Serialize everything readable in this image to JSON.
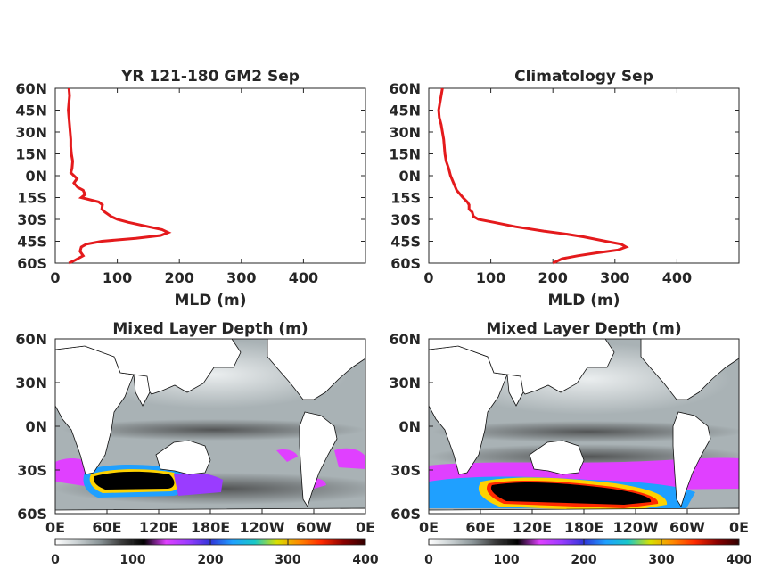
{
  "chart_data": [
    {
      "type": "line",
      "title": "YR 121-180 GM2 Sep",
      "xlabel": "MLD (m)",
      "ylabel": "",
      "xlim": [
        0,
        500
      ],
      "ylim": [
        -60,
        60
      ],
      "xticks": [
        "0",
        "100",
        "200",
        "300",
        "400"
      ],
      "yticks": [
        "60N",
        "45N",
        "30N",
        "15N",
        "0N",
        "15S",
        "30S",
        "45S",
        "60S"
      ],
      "line_color": "#e41a1c",
      "series": [
        {
          "lat": [
            60,
            55,
            50,
            45,
            40,
            35,
            30,
            25,
            20,
            15,
            10,
            5,
            2,
            0,
            -2,
            -5,
            -8,
            -10,
            -13,
            -15,
            -18,
            -20,
            -23,
            -25,
            -28,
            -30,
            -32,
            -35,
            -37,
            -39,
            -41,
            -43,
            -45,
            -47,
            -49,
            -52,
            -55,
            -58,
            -60
          ],
          "mld": [
            22,
            23,
            22,
            21,
            22,
            23,
            24,
            25,
            25,
            26,
            28,
            27,
            25,
            30,
            35,
            30,
            36,
            45,
            48,
            42,
            70,
            76,
            75,
            80,
            90,
            100,
            118,
            150,
            172,
            182,
            170,
            130,
            75,
            50,
            42,
            40,
            45,
            32,
            22
          ]
        }
      ]
    },
    {
      "type": "line",
      "title": "Climatology Sep",
      "xlabel": "MLD (m)",
      "ylabel": "",
      "xlim": [
        0,
        500
      ],
      "ylim": [
        -60,
        60
      ],
      "xticks": [
        "0",
        "100",
        "200",
        "300",
        "400"
      ],
      "yticks": [
        "60N",
        "45N",
        "30N",
        "15N",
        "0N",
        "15S",
        "30S",
        "45S",
        "60S"
      ],
      "line_color": "#e41a1c",
      "series": [
        {
          "lat": [
            60,
            55,
            50,
            45,
            40,
            35,
            30,
            25,
            20,
            15,
            10,
            5,
            0,
            -5,
            -10,
            -15,
            -18,
            -20,
            -23,
            -25,
            -28,
            -30,
            -32,
            -35,
            -38,
            -40,
            -42,
            -45,
            -47,
            -49,
            -51,
            -53,
            -55,
            -57,
            -60
          ],
          "mld": [
            22,
            20,
            18,
            16,
            17,
            20,
            22,
            24,
            25,
            26,
            28,
            32,
            35,
            40,
            45,
            55,
            62,
            65,
            65,
            70,
            72,
            80,
            105,
            140,
            185,
            220,
            250,
            285,
            310,
            318,
            305,
            270,
            240,
            215,
            200
          ]
        }
      ]
    },
    {
      "type": "heatmap",
      "title": "Mixed Layer Depth (m)",
      "xticks": [
        "0E",
        "60E",
        "120E",
        "180E",
        "120W",
        "60W",
        "0E"
      ],
      "yticks": [
        "60N",
        "30N",
        "0N",
        "30S",
        "60S"
      ],
      "colorbar_ticks": [
        "0",
        "100",
        "200",
        "300",
        "400"
      ],
      "colorbar_range": [
        0,
        400
      ]
    },
    {
      "type": "heatmap",
      "title": "Mixed Layer Depth (m)",
      "xticks": [
        "0E",
        "60E",
        "120E",
        "180E",
        "120W",
        "60W",
        "0E"
      ],
      "yticks": [
        "60N",
        "30N",
        "0N",
        "30S",
        "60S"
      ],
      "colorbar_ticks": [
        "0",
        "100",
        "200",
        "300",
        "400"
      ],
      "colorbar_range": [
        0,
        400
      ]
    }
  ],
  "colormap": [
    "#ffffff",
    "#c9d0d2",
    "#8a9497",
    "#3a3a3a",
    "#000000",
    "#e040ff",
    "#9a3cff",
    "#2f35d8",
    "#1fa0ff",
    "#19c8c8",
    "#d8e000",
    "#ff8a00",
    "#ff2a00",
    "#8b0000",
    "#300000"
  ]
}
